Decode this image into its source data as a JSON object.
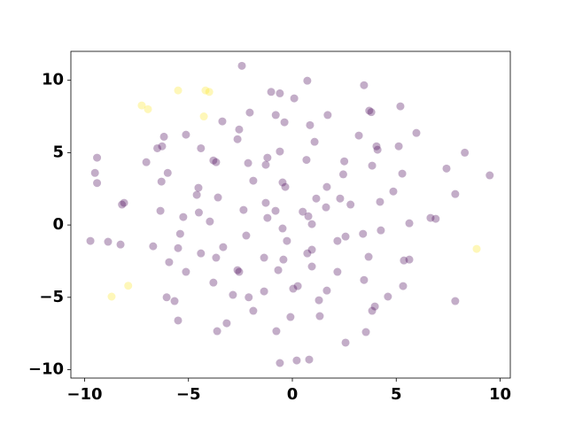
{
  "chart_data": {
    "type": "scatter",
    "xlim": [
      -10.66,
      10.49
    ],
    "ylim": [
      -10.58,
      12.0
    ],
    "xticks": [
      {
        "value": -10,
        "label": "−10"
      },
      {
        "value": -5,
        "label": "−5"
      },
      0,
      5,
      10
    ],
    "yticks": [
      {
        "value": -10,
        "label": "−10"
      },
      {
        "value": -5,
        "label": "−5"
      },
      0,
      5,
      10
    ],
    "series": [
      {
        "color": "#440154",
        "x": [
          -2.43,
          0.72,
          3.45,
          -1.02,
          -0.6,
          0.09,
          5.2,
          3.7,
          3.8,
          -2.05,
          -0.8,
          1.7,
          -0.38,
          -3.37,
          0.85,
          -2.56,
          5.97,
          3.2,
          -5.12,
          -6.18,
          -2.64,
          1.07,
          -4.4,
          4.05,
          4.1,
          5.12,
          -6.27,
          -6.5,
          -0.6,
          8.3,
          0.68,
          2.5,
          -9.4,
          -7.03,
          -3.8,
          -3.67,
          -2.13,
          -1.28,
          -1.2,
          3.84,
          7.42,
          -9.5,
          -6.0,
          2.45,
          5.29,
          9.5,
          -9.4,
          -6.3,
          -1.88,
          -0.47,
          -0.34,
          1.66,
          -4.52,
          -4.6,
          4.86,
          7.84,
          -3.58,
          1.15,
          2.3,
          -8.1,
          -8.2,
          -1.28,
          2.8,
          4.22,
          1.62,
          -6.35,
          -2.35,
          -0.81,
          -4.5,
          0.5,
          0.77,
          6.65,
          6.9,
          -5.25,
          -1.2,
          -3.97,
          0.94,
          5.63,
          -0.47,
          4.26,
          -5.4,
          3.4,
          2.56,
          -9.72,
          -8.87,
          -8.27,
          -2.22,
          -0.26,
          2.17,
          -6.7,
          -3.33,
          -5.5,
          0.94,
          0.72,
          -4.4,
          -3.67,
          -1.36,
          -0.43,
          3.67,
          5.37,
          5.63,
          -5.93,
          0.94,
          -5.12,
          -0.68,
          2.17,
          -2.64,
          -2.56,
          -3.8,
          3.45,
          5.33,
          1.66,
          -1.36,
          0.26,
          0.04,
          -2.86,
          4.6,
          -6.05,
          -2.1,
          -5.67,
          1.28,
          3.97,
          3.84,
          -1.88,
          7.84,
          -0.09,
          1.32,
          -5.5,
          -3.16,
          -3.62,
          -0.77,
          3.54,
          2.56,
          0.21,
          0.81,
          -0.6
        ],
        "values": [
          11.0,
          9.97,
          9.66,
          9.2,
          9.1,
          8.75,
          8.2,
          7.9,
          7.8,
          7.77,
          7.6,
          7.6,
          7.1,
          7.16,
          6.9,
          6.6,
          6.36,
          6.18,
          6.24,
          6.1,
          5.93,
          5.75,
          5.3,
          5.44,
          5.2,
          5.44,
          5.44,
          5.3,
          5.08,
          5.0,
          4.5,
          4.4,
          4.65,
          4.34,
          4.46,
          4.34,
          4.28,
          4.16,
          4.65,
          4.1,
          3.9,
          3.6,
          3.6,
          3.5,
          3.55,
          3.43,
          2.9,
          3.0,
          3.06,
          2.94,
          2.63,
          2.63,
          2.57,
          2.08,
          2.32,
          2.14,
          1.9,
          1.83,
          1.83,
          1.53,
          1.41,
          1.53,
          1.41,
          1.6,
          1.22,
          0.98,
          1.04,
          0.98,
          0.86,
          0.92,
          0.6,
          0.49,
          0.43,
          0.55,
          0.49,
          0.24,
          0.06,
          0.12,
          -0.24,
          -0.37,
          -0.61,
          -0.61,
          -0.8,
          -1.1,
          -1.16,
          -1.35,
          -0.73,
          -1.1,
          -1.1,
          -1.47,
          -1.53,
          -1.6,
          -1.71,
          -1.96,
          -1.96,
          -2.26,
          -2.26,
          -2.39,
          -2.2,
          -2.45,
          -2.39,
          -2.57,
          -2.87,
          -3.24,
          -3.12,
          -3.24,
          -3.12,
          -3.24,
          -3.98,
          -3.8,
          -4.22,
          -4.53,
          -4.59,
          -4.22,
          -4.4,
          -4.83,
          -4.95,
          -5.0,
          -5.0,
          -5.26,
          -5.2,
          -5.63,
          -5.93,
          -5.93,
          -5.26,
          -6.36,
          -6.3,
          -6.6,
          -6.79,
          -7.34,
          -7.34,
          -7.4,
          -8.13,
          -9.36,
          -9.3,
          -9.54
        ]
      },
      {
        "color": "#fde725",
        "x": [
          -7.25,
          -6.95,
          -5.5,
          -4.18,
          -4.0,
          -4.26,
          -7.9,
          -8.7,
          8.87
        ],
        "values": [
          8.26,
          8.0,
          9.3,
          9.3,
          9.2,
          7.5,
          -4.2,
          -4.95,
          -1.65
        ]
      }
    ]
  }
}
